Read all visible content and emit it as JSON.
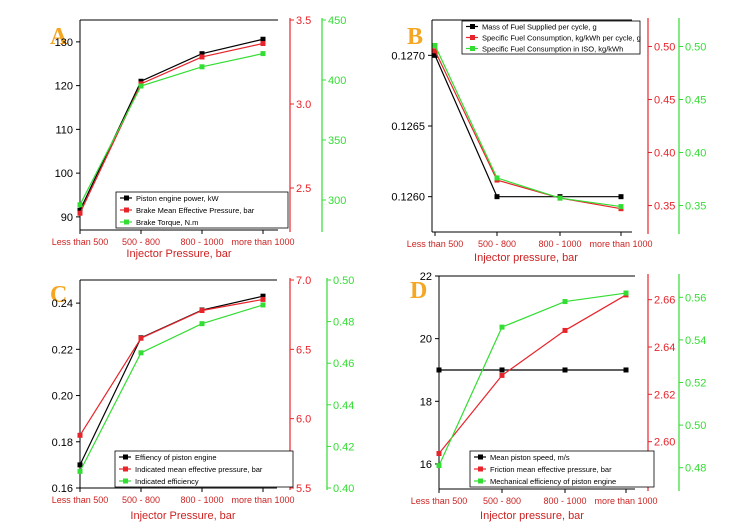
{
  "figure": {
    "colors": {
      "black": "#000000",
      "red": "#e8242b",
      "green": "#33dd33",
      "panel_letter": "#f5a623"
    }
  },
  "chart_data": [
    {
      "panel": "A",
      "type": "line",
      "categories": [
        "Less than 500",
        "500 - 800",
        "800 - 1000",
        "more than 1000"
      ],
      "xlabel": "Injector Pressure, bar",
      "axes": [
        {
          "side": "left",
          "color": "#000000",
          "ylim": [
            87,
            135
          ],
          "ticks": [
            90,
            100,
            110,
            120,
            130
          ]
        },
        {
          "side": "right1",
          "color": "#e8242b",
          "ylim": [
            2.25,
            3.5
          ],
          "ticks": [
            2.5,
            3.0,
            3.5
          ],
          "tick_labels": [
            "2.5",
            "3.0",
            "3.5"
          ]
        },
        {
          "side": "right2",
          "color": "#33dd33",
          "ylim": [
            275,
            450
          ],
          "ticks": [
            300,
            350,
            400,
            450
          ]
        }
      ],
      "series": [
        {
          "name": "Piston engine power, kW",
          "color": "#000000",
          "axis": 0,
          "values": [
            91.5,
            121.0,
            127.3,
            130.6
          ]
        },
        {
          "name": "Brake Mean Effective Pressure, bar",
          "color": "#e8242b",
          "axis": 1,
          "values": [
            2.35,
            3.12,
            3.28,
            3.36
          ]
        },
        {
          "name": "Brake Torque, N.m",
          "color": "#33dd33",
          "axis": 2,
          "values": [
            296,
            395,
            411,
            422
          ]
        }
      ],
      "legend": "bottom-right"
    },
    {
      "panel": "B",
      "type": "line",
      "categories": [
        "Less than 500",
        "500 - 800",
        "800 - 1000",
        "more than 1000"
      ],
      "xlabel": "Injector pressure, bar",
      "axes": [
        {
          "side": "left",
          "color": "#000000",
          "ylim": [
            0.12575,
            0.12725
          ],
          "ticks": [
            0.126,
            0.1265,
            0.127
          ],
          "tick_labels": [
            "0.1260",
            "0.1265",
            "0.1270"
          ]
        },
        {
          "side": "right1",
          "color": "#e8242b",
          "ylim": [
            0.325,
            0.525
          ],
          "ticks": [
            0.35,
            0.4,
            0.45,
            0.5
          ],
          "tick_labels": [
            "0.35",
            "0.40",
            "0.45",
            "0.50"
          ]
        },
        {
          "side": "right2",
          "color": "#33dd33",
          "ylim": [
            0.325,
            0.525
          ],
          "ticks": [
            0.35,
            0.4,
            0.45,
            0.5
          ],
          "tick_labels": [
            "0.35",
            "0.40",
            "0.45",
            "0.50"
          ]
        }
      ],
      "series": [
        {
          "name": "Mass of Fuel Supplied per cycle, g",
          "color": "#000000",
          "axis": 0,
          "values": [
            0.127,
            0.126,
            0.126,
            0.126
          ]
        },
        {
          "name": "Specific Fuel Consumption, kg/kWh per cycle, g",
          "color": "#e8242b",
          "axis": 1,
          "values": [
            0.496,
            0.374,
            0.357,
            0.347
          ]
        },
        {
          "name": "Specific Fuel Consumption in ISO, kg/kWh",
          "color": "#33dd33",
          "axis": 2,
          "values": [
            0.501,
            0.376,
            0.357,
            0.349
          ]
        }
      ],
      "legend": "top-right"
    },
    {
      "panel": "C",
      "type": "line",
      "categories": [
        "Less than 500",
        "500 - 800",
        "800 - 1000",
        "more than 1000"
      ],
      "xlabel": "Injector Pressure, bar",
      "axes": [
        {
          "side": "left",
          "color": "#000000",
          "ylim": [
            0.16,
            0.25
          ],
          "ticks": [
            0.16,
            0.18,
            0.2,
            0.22,
            0.24
          ],
          "tick_labels": [
            "0.16",
            "0.18",
            "0.20",
            "0.22",
            "0.24"
          ]
        },
        {
          "side": "right1",
          "color": "#e8242b",
          "ylim": [
            5.5,
            7.0
          ],
          "ticks": [
            5.5,
            6.0,
            6.5,
            7.0
          ],
          "tick_labels": [
            "5.5",
            "6.0",
            "6.5",
            "7.0"
          ]
        },
        {
          "side": "right2",
          "color": "#33dd33",
          "ylim": [
            0.4,
            0.5
          ],
          "ticks": [
            0.4,
            0.42,
            0.44,
            0.46,
            0.48,
            0.5
          ],
          "tick_labels": [
            "0.40",
            "0.42",
            "0.44",
            "0.46",
            "0.48",
            "0.50"
          ]
        }
      ],
      "series": [
        {
          "name": "Effiency of piston engine",
          "color": "#000000",
          "axis": 0,
          "values": [
            0.17,
            0.225,
            0.237,
            0.243
          ]
        },
        {
          "name": "Indicated mean effective pressure, bar",
          "color": "#e8242b",
          "axis": 1,
          "values": [
            5.88,
            6.58,
            6.78,
            6.86
          ]
        },
        {
          "name": "Indicated efficiency",
          "color": "#33dd33",
          "axis": 2,
          "values": [
            0.408,
            0.465,
            0.479,
            0.488
          ]
        }
      ],
      "legend": "bottom-right"
    },
    {
      "panel": "D",
      "type": "line",
      "categories": [
        "Less than 500",
        "500 - 800",
        "800 - 1000",
        "more than 1000"
      ],
      "xlabel": "Injector pressure, bar",
      "axes": [
        {
          "side": "left",
          "color": "#000000",
          "ylim": [
            15.2,
            22
          ],
          "ticks": [
            16,
            18,
            20,
            22
          ]
        },
        {
          "side": "right1",
          "color": "#e8242b",
          "ylim": [
            2.58,
            2.67
          ],
          "ticks": [
            2.6,
            2.62,
            2.64,
            2.66
          ],
          "tick_labels": [
            "2.60",
            "2.62",
            "2.64",
            "2.66"
          ]
        },
        {
          "side": "right2",
          "color": "#33dd33",
          "ylim": [
            0.47,
            0.57
          ],
          "ticks": [
            0.48,
            0.5,
            0.52,
            0.54,
            0.56
          ],
          "tick_labels": [
            "0.48",
            "0.50",
            "0.52",
            "0.54",
            "0.56"
          ]
        }
      ],
      "series": [
        {
          "name": "Mean piston speed, m/s",
          "color": "#000000",
          "axis": 0,
          "values": [
            19,
            19,
            19,
            19
          ]
        },
        {
          "name": "Friction mean effective pressure, bar",
          "color": "#e8242b",
          "axis": 1,
          "values": [
            2.595,
            2.628,
            2.647,
            2.662
          ]
        },
        {
          "name": "Mechanical efficiency of piston engine",
          "color": "#33dd33",
          "axis": 2,
          "values": [
            0.481,
            0.546,
            0.558,
            0.562
          ]
        }
      ],
      "legend": "bottom-right"
    }
  ]
}
